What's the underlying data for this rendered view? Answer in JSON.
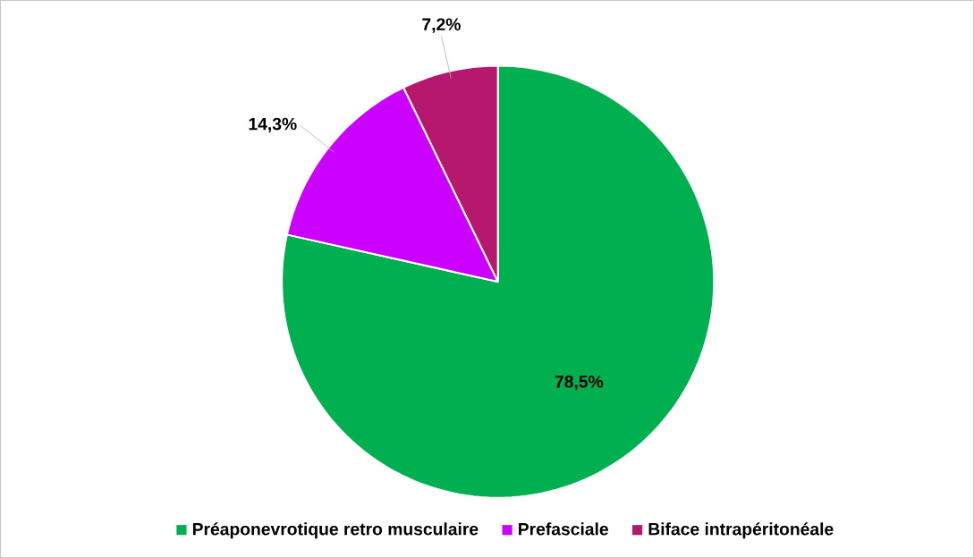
{
  "chart_data": {
    "type": "pie",
    "categories": [
      "Préaponevrotique retro musculaire",
      "Prefasciale",
      "Biface intrapéritonéale"
    ],
    "values": [
      78.5,
      14.3,
      7.2
    ],
    "colors": [
      "#00b050",
      "#cc00ff",
      "#b5186c"
    ],
    "value_labels": [
      "78,5%",
      "14,3%",
      "7,2%"
    ],
    "legend": "bottom"
  }
}
